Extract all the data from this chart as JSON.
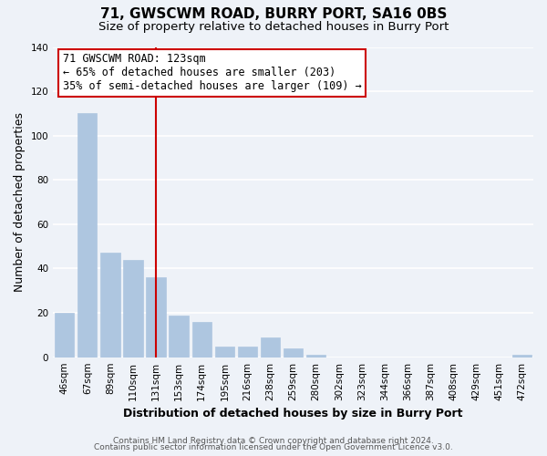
{
  "title": "71, GWSCWM ROAD, BURRY PORT, SA16 0BS",
  "subtitle": "Size of property relative to detached houses in Burry Port",
  "xlabel": "Distribution of detached houses by size in Burry Port",
  "ylabel": "Number of detached properties",
  "bar_labels": [
    "46sqm",
    "67sqm",
    "89sqm",
    "110sqm",
    "131sqm",
    "153sqm",
    "174sqm",
    "195sqm",
    "216sqm",
    "238sqm",
    "259sqm",
    "280sqm",
    "302sqm",
    "323sqm",
    "344sqm",
    "366sqm",
    "387sqm",
    "408sqm",
    "429sqm",
    "451sqm",
    "472sqm"
  ],
  "bar_values": [
    20,
    110,
    47,
    44,
    36,
    19,
    16,
    5,
    5,
    9,
    4,
    1,
    0,
    0,
    0,
    0,
    0,
    0,
    0,
    0,
    1
  ],
  "bar_color": "#aec6e0",
  "bar_edge_color": "#aec6e0",
  "vline_x": 4,
  "vline_color": "#cc0000",
  "annotation_line1": "71 GWSCWM ROAD: 123sqm",
  "annotation_line2": "← 65% of detached houses are smaller (203)",
  "annotation_line3": "35% of semi-detached houses are larger (109) →",
  "annotation_box_facecolor": "white",
  "annotation_box_edgecolor": "#cc0000",
  "ylim": [
    0,
    140
  ],
  "yticks": [
    0,
    20,
    40,
    60,
    80,
    100,
    120,
    140
  ],
  "footer_line1": "Contains HM Land Registry data © Crown copyright and database right 2024.",
  "footer_line2": "Contains public sector information licensed under the Open Government Licence v3.0.",
  "background_color": "#eef2f8",
  "grid_color": "white",
  "title_fontsize": 11,
  "subtitle_fontsize": 9.5,
  "axis_label_fontsize": 9,
  "tick_fontsize": 7.5,
  "annotation_fontsize": 8.5,
  "footer_fontsize": 6.5
}
